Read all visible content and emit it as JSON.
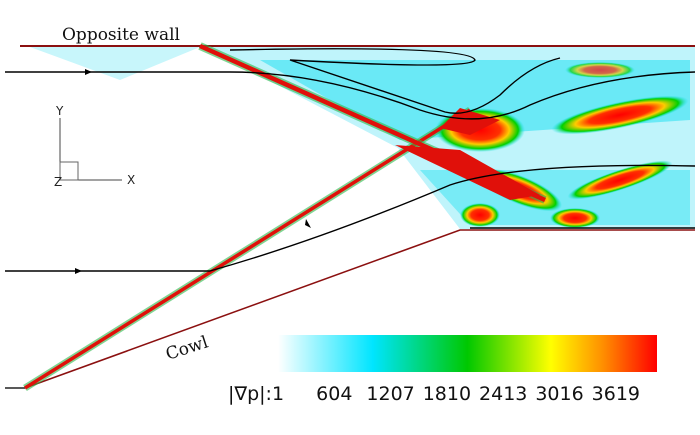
{
  "labels": {
    "opposite_wall": "Opposite wall",
    "cowl": "Cowl"
  },
  "axes": {
    "y": "Y",
    "x": "X",
    "z": "Z"
  },
  "colorbar": {
    "label": "|∇p|:",
    "range": [
      1,
      4060
    ],
    "ticks": [
      1,
      604,
      1207,
      1810,
      2413,
      3016,
      3619
    ]
  }
}
